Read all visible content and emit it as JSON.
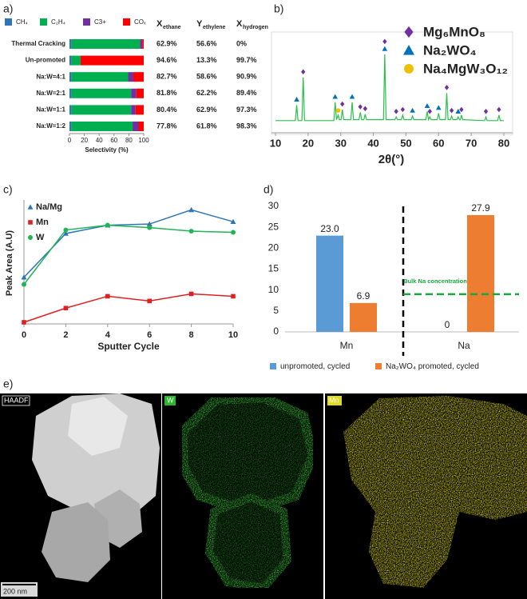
{
  "chart_data": [
    {
      "panel": "a)",
      "type": "bar",
      "orientation": "horizontal",
      "stacked": true,
      "categories": [
        "Thermal Cracking",
        "Un-promoted",
        "Na:W=4:1",
        "Na:W=2:1",
        "Na:W=1:1",
        "Na:W=1:2"
      ],
      "series": [
        {
          "name": "CH₄",
          "color": "#2e75b6",
          "values": [
            3,
            3,
            3,
            3,
            3,
            3
          ]
        },
        {
          "name": "C₂H₄",
          "color": "#00b050",
          "values": [
            92,
            12,
            76,
            80,
            80,
            82
          ]
        },
        {
          "name": "C3+",
          "color": "#7030a0",
          "values": [
            3,
            0,
            7,
            7,
            6,
            8
          ]
        },
        {
          "name": "COₓ",
          "color": "#ff0000",
          "values": [
            2,
            85,
            14,
            10,
            11,
            7
          ]
        }
      ],
      "xlim": [
        0,
        100
      ],
      "xticks": [
        0,
        20,
        40,
        60,
        80,
        100
      ],
      "xlabel": "Selectivity (%)",
      "table": {
        "columns": [
          {
            "symbol": "X",
            "subscript": "ethane"
          },
          {
            "symbol": "Y",
            "subscript": "ethylene"
          },
          {
            "symbol": "X",
            "subscript": "hydrogen"
          }
        ],
        "rows": [
          [
            "62.9%",
            "56.6%",
            "0%"
          ],
          [
            "94.6%",
            "13.3%",
            "99.7%"
          ],
          [
            "82.7%",
            "58.6%",
            "90.9%"
          ],
          [
            "81.8%",
            "62.2%",
            "89.4%"
          ],
          [
            "80.4%",
            "62.9%",
            "97.3%"
          ],
          [
            "77.8%",
            "61.8%",
            "98.3%"
          ]
        ]
      }
    },
    {
      "panel": "b)",
      "type": "line",
      "frame": true,
      "x": [
        10,
        16.1,
        16.5,
        16.9,
        18.1,
        18.5,
        18.9,
        27.9,
        28.3,
        28.7,
        29.2,
        29.6,
        30.1,
        30.5,
        30.9,
        33.1,
        33.5,
        33.9,
        35.6,
        36,
        36.4,
        37.1,
        37.5,
        37.9,
        43.1,
        43.5,
        43.9,
        46.6,
        47,
        47.4,
        48.6,
        49,
        49.4,
        51.6,
        52,
        52.4,
        56.1,
        56.5,
        56.9,
        57.3,
        57.7,
        59.6,
        60,
        60.4,
        62.1,
        62.5,
        62.9,
        63.6,
        64,
        64.4,
        65.6,
        66,
        66.4,
        66.7,
        67,
        67.4,
        74.1,
        74.5,
        74.9,
        78.1,
        78.5,
        78.9,
        80
      ],
      "series": [
        {
          "color": "#2bbf4b",
          "values": [
            8,
            8,
            25,
            8,
            8,
            55,
            8,
            8,
            28,
            9,
            14,
            9,
            9,
            20,
            9,
            9,
            28,
            9,
            9,
            17,
            9,
            9,
            15,
            9,
            9,
            80,
            9,
            9,
            12,
            9,
            9,
            14,
            9,
            9,
            13,
            9,
            9,
            18,
            9,
            12,
            9,
            9,
            16,
            9,
            9,
            38,
            9,
            9,
            13,
            9,
            9,
            12,
            9,
            9,
            14,
            9,
            8,
            12,
            8,
            8,
            14,
            8,
            8
          ]
        }
      ],
      "markers": [
        {
          "name": "Mg₆MnO₈",
          "shape": "diamond",
          "color": "#7030a0",
          "x": [
            18.5,
            30.5,
            36,
            37.5,
            43.5,
            47,
            49,
            57.3,
            62.5,
            64,
            67,
            74.5,
            78.5
          ],
          "y": [
            61,
            26,
            23,
            21,
            94,
            18,
            20,
            18,
            44,
            19,
            20,
            18,
            20
          ]
        },
        {
          "name": "Na₂WO₄",
          "shape": "triangle",
          "color": "#0070c0",
          "x": [
            16.5,
            28.3,
            33.5,
            43.5,
            52,
            56.5,
            60,
            66
          ],
          "y": [
            31,
            34,
            34,
            86,
            19,
            24,
            22,
            18
          ]
        },
        {
          "name": "Na₄MgW₃O₁₂",
          "shape": "circle",
          "color": "#f0c000",
          "x": [
            29.2
          ],
          "y": [
            19
          ]
        }
      ],
      "xlim": [
        10,
        80
      ],
      "xticks": [
        10,
        20,
        30,
        40,
        50,
        60,
        70,
        80
      ],
      "ylim": [
        0,
        100
      ],
      "xlabel": "2θ(°)"
    },
    {
      "panel": "c)",
      "type": "line",
      "x": [
        0,
        2,
        4,
        6,
        8,
        10
      ],
      "series": [
        {
          "name": "Na/Mg",
          "shape": "triangle",
          "color": "#2e75b6",
          "values": [
            38,
            75,
            82,
            83,
            95,
            85
          ]
        },
        {
          "name": "Mn",
          "shape": "square",
          "color": "#e02020",
          "values": [
            0,
            12,
            22,
            18,
            24,
            22
          ]
        },
        {
          "name": "W",
          "shape": "circle",
          "color": "#1fb454",
          "values": [
            32,
            78,
            82,
            80,
            77,
            76
          ]
        }
      ],
      "xlim": [
        0,
        10
      ],
      "xticks": [
        0,
        2,
        4,
        6,
        8,
        10
      ],
      "ylim": [
        0,
        100
      ],
      "xlabel": "Sputter Cycle",
      "ylabel": "Peak Area (A.U)",
      "legend": "top-left"
    },
    {
      "panel": "d)",
      "type": "bar",
      "categories": [
        "Mn",
        "Na"
      ],
      "series": [
        {
          "name": "unpromoted, cycled",
          "color": "#5b9bd5",
          "values": [
            23.0,
            0
          ],
          "value_labels": [
            "23.0",
            "0"
          ]
        },
        {
          "name": "Na₂WO₄ promoted, cycled",
          "color": "#ed7d31",
          "values": [
            6.9,
            27.9
          ],
          "value_labels": [
            "6.9",
            "27.9"
          ]
        }
      ],
      "ylim": [
        0,
        30
      ],
      "yticks": [
        0,
        5,
        10,
        15,
        20,
        25,
        30
      ],
      "reference_line": {
        "value": 9,
        "label": "Bulk Na concentration",
        "color": "#18a840"
      },
      "legend": "bottom"
    }
  ],
  "images": {
    "panel": "e)",
    "labels": [
      "HAADF",
      "W",
      "Mn"
    ],
    "scale_bar": "200 nm"
  }
}
